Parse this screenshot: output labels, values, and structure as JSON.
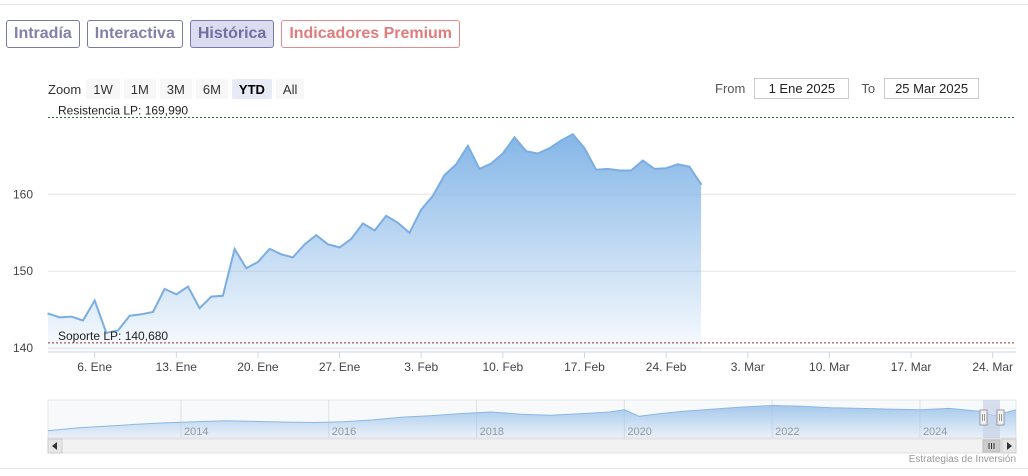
{
  "tabs": [
    {
      "label": "Intradía"
    },
    {
      "label": "Interactiva"
    },
    {
      "label": "Histórica"
    },
    {
      "label": "Indicadores Premium"
    }
  ],
  "zoom": {
    "label": "Zoom",
    "buttons": [
      "1W",
      "1M",
      "3M",
      "6M",
      "YTD",
      "All"
    ],
    "selected": "YTD"
  },
  "range": {
    "from_label": "From",
    "from_value": "1 Ene 2025",
    "to_label": "To",
    "to_value": "25 Mar 2025"
  },
  "credit": "Estrategias de Inversión",
  "chart_data": {
    "type": "area",
    "x_tick_labels": [
      "6. Ene",
      "13. Ene",
      "20. Ene",
      "27. Ene",
      "3. Feb",
      "10. Feb",
      "17. Feb",
      "24. Feb",
      "3. Mar",
      "10. Mar",
      "17. Mar",
      "24. Mar"
    ],
    "x_ticks_day": [
      5,
      12,
      19,
      26,
      33,
      40,
      47,
      54,
      61,
      68,
      75,
      82
    ],
    "x_range_day": [
      1,
      84
    ],
    "y_ticks": [
      140,
      150,
      160
    ],
    "ylim": [
      139.5,
      170.7
    ],
    "series": [
      {
        "points": [
          [
            1,
            144.5
          ],
          [
            2,
            144.0
          ],
          [
            3,
            144.1
          ],
          [
            4,
            143.6
          ],
          [
            5,
            146.2
          ],
          [
            6,
            142.0
          ],
          [
            7,
            142.3
          ],
          [
            8,
            144.2
          ],
          [
            9,
            144.4
          ],
          [
            10,
            144.7
          ],
          [
            11,
            147.7
          ],
          [
            12,
            147.0
          ],
          [
            13,
            148.0
          ],
          [
            14,
            145.2
          ],
          [
            15,
            146.7
          ],
          [
            16,
            146.8
          ],
          [
            17,
            152.9
          ],
          [
            18,
            150.4
          ],
          [
            19,
            151.2
          ],
          [
            20,
            152.9
          ],
          [
            21,
            152.2
          ],
          [
            22,
            151.8
          ],
          [
            23,
            153.5
          ],
          [
            24,
            154.7
          ],
          [
            25,
            153.5
          ],
          [
            26,
            153.1
          ],
          [
            27,
            154.2
          ],
          [
            28,
            156.2
          ],
          [
            29,
            155.3
          ],
          [
            30,
            157.2
          ],
          [
            31,
            156.3
          ],
          [
            32,
            155.0
          ],
          [
            33,
            158.0
          ],
          [
            34,
            159.8
          ],
          [
            35,
            162.5
          ],
          [
            36,
            163.9
          ],
          [
            37,
            166.3
          ],
          [
            38,
            163.3
          ],
          [
            39,
            164.0
          ],
          [
            40,
            165.3
          ],
          [
            41,
            167.4
          ],
          [
            42,
            165.6
          ],
          [
            43,
            165.3
          ],
          [
            44,
            166.0
          ],
          [
            45,
            167.0
          ],
          [
            46,
            167.8
          ],
          [
            47,
            166.0
          ],
          [
            48,
            163.2
          ],
          [
            49,
            163.3
          ],
          [
            50,
            163.1
          ],
          [
            51,
            163.1
          ],
          [
            52,
            164.4
          ],
          [
            53,
            163.3
          ],
          [
            54,
            163.4
          ],
          [
            55,
            163.9
          ],
          [
            56,
            163.6
          ],
          [
            57,
            161.3
          ]
        ]
      }
    ],
    "annotations": [
      {
        "label": "Resistencia LP: 169,990",
        "value": 169.99,
        "color": "#336633"
      },
      {
        "label": "Soporte LP: 140,680",
        "value": 140.68,
        "color": "#993333"
      }
    ],
    "navigator": {
      "x_tick_labels": [
        "2014",
        "2016",
        "2018",
        "2020",
        "2022",
        "2024"
      ],
      "x_ticks_year": [
        2014,
        2016,
        2018,
        2020,
        2022,
        2024
      ],
      "x_range_year": [
        2012.2,
        2025.3
      ],
      "approx_series": [
        [
          2012.2,
          0.2
        ],
        [
          2012.6,
          0.28
        ],
        [
          2013.0,
          0.33
        ],
        [
          2013.4,
          0.38
        ],
        [
          2013.8,
          0.42
        ],
        [
          2014.2,
          0.45
        ],
        [
          2014.6,
          0.48
        ],
        [
          2015.0,
          0.46
        ],
        [
          2015.4,
          0.44
        ],
        [
          2015.8,
          0.43
        ],
        [
          2016.2,
          0.45
        ],
        [
          2016.6,
          0.5
        ],
        [
          2017.0,
          0.58
        ],
        [
          2017.4,
          0.62
        ],
        [
          2017.8,
          0.68
        ],
        [
          2018.2,
          0.72
        ],
        [
          2018.6,
          0.66
        ],
        [
          2019.0,
          0.63
        ],
        [
          2019.4,
          0.67
        ],
        [
          2019.8,
          0.72
        ],
        [
          2020.0,
          0.78
        ],
        [
          2020.2,
          0.6
        ],
        [
          2020.5,
          0.68
        ],
        [
          2020.8,
          0.74
        ],
        [
          2021.2,
          0.8
        ],
        [
          2021.6,
          0.86
        ],
        [
          2022.0,
          0.9
        ],
        [
          2022.4,
          0.88
        ],
        [
          2022.8,
          0.84
        ],
        [
          2023.2,
          0.82
        ],
        [
          2023.6,
          0.8
        ],
        [
          2024.0,
          0.78
        ],
        [
          2024.4,
          0.82
        ],
        [
          2024.8,
          0.74
        ],
        [
          2025.0,
          0.62
        ],
        [
          2025.3,
          0.78
        ]
      ]
    }
  }
}
